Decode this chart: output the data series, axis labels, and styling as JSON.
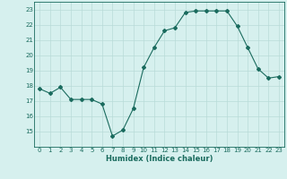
{
  "x": [
    0,
    1,
    2,
    3,
    4,
    5,
    6,
    7,
    8,
    9,
    10,
    11,
    12,
    13,
    14,
    15,
    16,
    17,
    18,
    19,
    20,
    21,
    22,
    23
  ],
  "y": [
    17.8,
    17.5,
    17.9,
    17.1,
    17.1,
    17.1,
    16.8,
    14.7,
    15.1,
    16.5,
    19.2,
    20.5,
    21.6,
    21.8,
    22.8,
    22.9,
    22.9,
    22.9,
    22.9,
    21.9,
    20.5,
    19.1,
    18.5,
    18.6
  ],
  "line_color": "#1a6b5e",
  "marker": "D",
  "markersize": 2.0,
  "bg_color": "#d6f0ee",
  "grid_color": "#b8dbd8",
  "tick_color": "#1a6b5e",
  "label_color": "#1a6b5e",
  "xlabel": "Humidex (Indice chaleur)",
  "xlim": [
    -0.5,
    23.5
  ],
  "ylim": [
    14.0,
    23.5
  ],
  "yticks": [
    15,
    16,
    17,
    18,
    19,
    20,
    21,
    22,
    23
  ],
  "xticks": [
    0,
    1,
    2,
    3,
    4,
    5,
    6,
    7,
    8,
    9,
    10,
    11,
    12,
    13,
    14,
    15,
    16,
    17,
    18,
    19,
    20,
    21,
    22,
    23
  ],
  "tick_fontsize": 5.0,
  "xlabel_fontsize": 6.0,
  "linewidth": 0.8
}
